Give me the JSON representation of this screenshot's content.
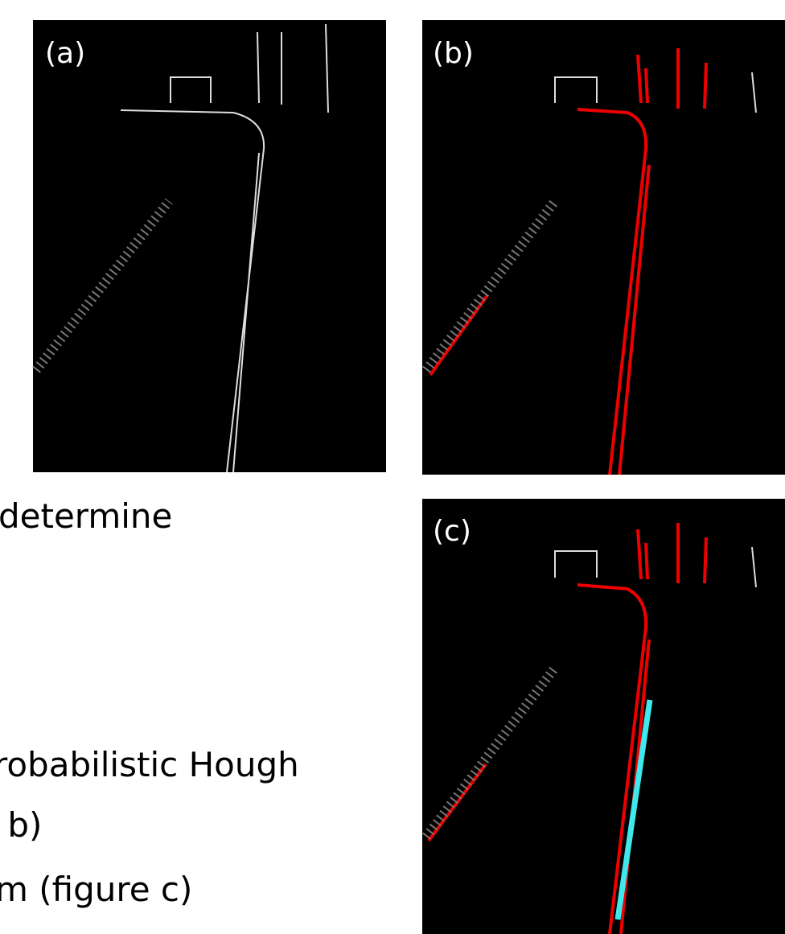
{
  "panels": [
    {
      "label": "(a)"
    },
    {
      "label": "(b)"
    },
    {
      "label": "(c)"
    }
  ],
  "text_lines": [
    "determine",
    "robabilistic Hough",
    " b)",
    "m (figure c)"
  ]
}
